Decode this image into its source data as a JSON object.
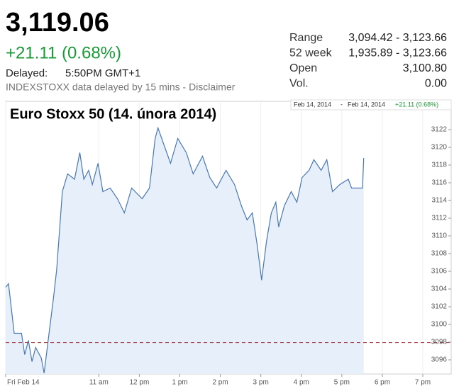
{
  "header": {
    "price": "3,119.06",
    "change": "+21.11 (0.68%)",
    "delayed_label": "Delayed:",
    "delayed_time": "5:50PM GMT+1",
    "note": "INDEXSTOXX data delayed by 15 mins - Disclaimer"
  },
  "stats": [
    {
      "label": "Range",
      "value": "3,094.42 - 3,123.66"
    },
    {
      "label": "52 week",
      "value": "1,935.89 - 3,123.66"
    },
    {
      "label": "Open",
      "value": "3,100.80"
    },
    {
      "label": "Vol.",
      "value": "0.00"
    }
  ],
  "chart_data": {
    "type": "line",
    "title": "Euro Stoxx 50 (14. února 2014)",
    "range_start": "Feb 14, 2014",
    "range_separator": "-",
    "range_end": "Feb 14, 2014",
    "range_change": "+21.11 (0.68%)",
    "color": "#4a78b0",
    "fill_color": "#e6effa",
    "reference_line": 3097.95,
    "reference_color": "#a0303a",
    "x": [
      8.7,
      8.77,
      8.91,
      9.09,
      9.17,
      9.26,
      9.35,
      9.44,
      9.58,
      9.65,
      9.75,
      9.88,
      9.96,
      10.1,
      10.23,
      10.4,
      10.53,
      10.63,
      10.75,
      10.84,
      10.98,
      11.1,
      11.28,
      11.46,
      11.63,
      11.81,
      12.07,
      12.25,
      12.39,
      12.46,
      12.63,
      12.77,
      12.95,
      13.16,
      13.33,
      13.56,
      13.74,
      13.91,
      14.14,
      14.35,
      14.52,
      14.66,
      14.79,
      14.91,
      15.02,
      15.14,
      15.26,
      15.37,
      15.44,
      15.58,
      15.75,
      15.89,
      16.02,
      16.19,
      16.31,
      16.49,
      16.63,
      16.77,
      16.95,
      17.16,
      17.24,
      17.51,
      17.54
    ],
    "values": [
      3104.2,
      3104.6,
      3099,
      3099,
      3096.6,
      3098.2,
      3095.8,
      3097.4,
      3096.2,
      3094.5,
      3098.2,
      3103,
      3106.2,
      3115,
      3117,
      3116.4,
      3119.4,
      3116.4,
      3117.4,
      3115.8,
      3118.2,
      3115,
      3115.4,
      3114.2,
      3112.6,
      3115.4,
      3114.2,
      3115.4,
      3121,
      3122.2,
      3120,
      3118.2,
      3121,
      3119.4,
      3117,
      3119,
      3116.6,
      3115.4,
      3117.4,
      3115.8,
      3113.4,
      3111.8,
      3112.6,
      3109,
      3105,
      3109.4,
      3112.6,
      3113.8,
      3111,
      3113.4,
      3115,
      3113.8,
      3116.6,
      3117.4,
      3118.6,
      3117.4,
      3118.6,
      3115,
      3115.8,
      3116.4,
      3115.4,
      3115.4,
      3118.8
    ],
    "xlim": [
      8.7,
      19.7
    ],
    "ylim": [
      3094.4,
      3125.2
    ],
    "xticks": [
      {
        "value": 8.7,
        "label": "Fri Feb 14"
      },
      {
        "value": 11,
        "label": "11 am"
      },
      {
        "value": 12,
        "label": "12 pm"
      },
      {
        "value": 13,
        "label": "1 pm"
      },
      {
        "value": 14,
        "label": "2 pm"
      },
      {
        "value": 15,
        "label": "3 pm"
      },
      {
        "value": 16,
        "label": "4 pm"
      },
      {
        "value": 17,
        "label": "5 pm"
      },
      {
        "value": 18,
        "label": "6 pm"
      },
      {
        "value": 19,
        "label": "7 pm"
      }
    ],
    "yticks": [
      3096,
      3098,
      3100,
      3102,
      3104,
      3106,
      3108,
      3110,
      3112,
      3114,
      3116,
      3118,
      3120,
      3122
    ]
  }
}
